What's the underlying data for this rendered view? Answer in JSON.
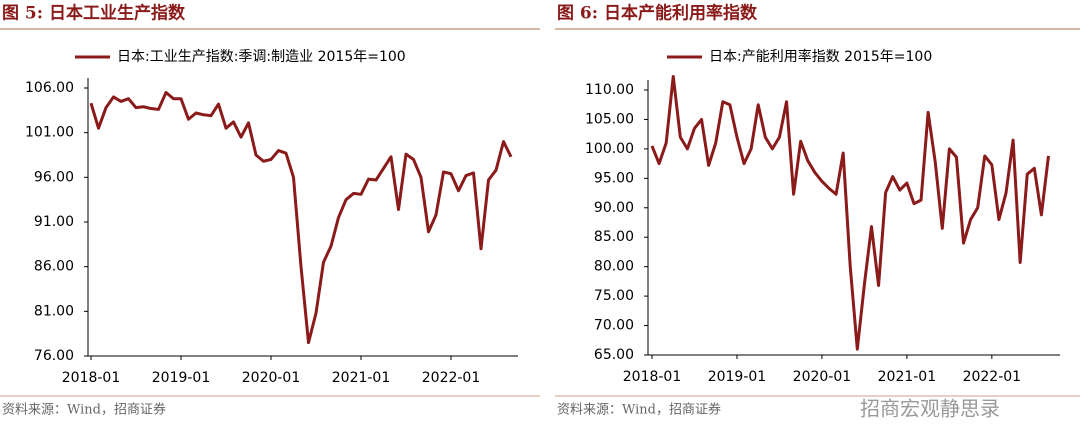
{
  "chart_data": [
    {
      "type": "line",
      "title": "图 5:  日本工业生产指数",
      "source": "资料来源：Wind，招商证券",
      "categories": [
        "2018-01",
        null,
        null,
        null,
        null,
        null,
        null,
        null,
        null,
        null,
        null,
        null,
        "2019-01",
        null,
        null,
        null,
        null,
        null,
        null,
        null,
        null,
        null,
        null,
        null,
        "2020-01",
        null,
        null,
        null,
        null,
        null,
        null,
        null,
        null,
        null,
        null,
        null,
        "2021-01",
        null,
        null,
        null,
        null,
        null,
        null,
        null,
        null,
        null,
        null,
        null,
        "2022-01",
        null,
        null,
        null,
        null,
        null,
        null,
        null,
        null
      ],
      "series": [
        {
          "name": "日本:工业生产指数:季调:制造业 2015年=100",
          "color": "#8b1a1a",
          "values": [
            104.3,
            101.5,
            103.8,
            105.0,
            104.5,
            104.8,
            103.8,
            103.9,
            103.7,
            103.6,
            105.5,
            104.8,
            104.8,
            102.5,
            103.2,
            103.0,
            102.9,
            104.2,
            101.5,
            102.2,
            100.5,
            102.1,
            98.5,
            97.8,
            98.0,
            99.0,
            98.7,
            96.0,
            86.0,
            77.5,
            80.8,
            86.5,
            88.3,
            91.5,
            93.5,
            94.2,
            94.1,
            95.8,
            95.7,
            97.0,
            98.3,
            92.4,
            98.6,
            98.0,
            96.0,
            89.9,
            91.8,
            96.6,
            96.4,
            94.5,
            96.2,
            96.5,
            88.0,
            95.7,
            96.8,
            100.0,
            98.3
          ]
        }
      ],
      "ylim": [
        76,
        106
      ],
      "yticks": [
        {
          "value": 76,
          "label": "76.00"
        },
        {
          "value": 81,
          "label": "81.00"
        },
        {
          "value": 86,
          "label": "86.00"
        },
        {
          "value": 91,
          "label": "91.00"
        },
        {
          "value": 96,
          "label": "96.00"
        },
        {
          "value": 101,
          "label": "101.00"
        },
        {
          "value": 106,
          "label": "106.00"
        }
      ]
    },
    {
      "type": "line",
      "title": "图 6:  日本产能利用率指数",
      "source": "资料来源：Wind，招商证券",
      "categories": [
        "2018-01",
        null,
        null,
        null,
        null,
        null,
        null,
        null,
        null,
        null,
        null,
        null,
        "2019-01",
        null,
        null,
        null,
        null,
        null,
        null,
        null,
        null,
        null,
        null,
        null,
        "2020-01",
        null,
        null,
        null,
        null,
        null,
        null,
        null,
        null,
        null,
        null,
        null,
        "2021-01",
        null,
        null,
        null,
        null,
        null,
        null,
        null,
        null,
        null,
        null,
        null,
        "2022-01",
        null,
        null,
        null,
        null,
        null,
        null,
        null,
        null
      ],
      "series": [
        {
          "name": "日本:产能利用率指数 2015年=100",
          "color": "#8b1a1a",
          "values": [
            100.5,
            97.5,
            101,
            112.3,
            102,
            100,
            103.5,
            105,
            97.2,
            101,
            108,
            107.5,
            102,
            97.5,
            100,
            107.5,
            102,
            100,
            102,
            108,
            92.3,
            101.3,
            98,
            96,
            94.5,
            93.3,
            92.3,
            99.3,
            80,
            66,
            77,
            86.8,
            76.8,
            92.6,
            95.3,
            93,
            94.2,
            90.7,
            91.3,
            106.2,
            97.8,
            86.5,
            100,
            98.6,
            84,
            88,
            90,
            98.8,
            97.3,
            88,
            92.5,
            101.5,
            80.7,
            95.7,
            96.7,
            88.8,
            98.8
          ]
        }
      ],
      "ylim": [
        65,
        110
      ],
      "yticks": [
        {
          "value": 65,
          "label": "65.00"
        },
        {
          "value": 70,
          "label": "70.00"
        },
        {
          "value": 75,
          "label": "75.00"
        },
        {
          "value": 80,
          "label": "80.00"
        },
        {
          "value": 85,
          "label": "85.00"
        },
        {
          "value": 90,
          "label": "90.00"
        },
        {
          "value": 95,
          "label": "95.00"
        },
        {
          "value": 100,
          "label": "100.00"
        },
        {
          "value": 105,
          "label": "105.00"
        },
        {
          "value": 110,
          "label": "110.00"
        }
      ]
    }
  ],
  "watermark": "招商宏观静思录"
}
